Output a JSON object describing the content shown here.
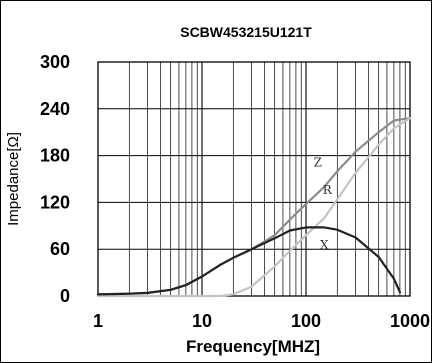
{
  "chart_data": {
    "type": "line",
    "title": "SCBW453215U121T",
    "xlabel": "Frequency[MHZ]",
    "ylabel": "Impedance[Ω]",
    "x_scale": "log",
    "xlim": [
      1,
      1000
    ],
    "ylim": [
      0,
      300
    ],
    "x_ticks": [
      "1",
      "10",
      "100",
      "1000"
    ],
    "y_ticks": [
      "0",
      "60",
      "120",
      "180",
      "240",
      "300"
    ],
    "grid": true,
    "legend": "none",
    "series": [
      {
        "name": "Z",
        "color": "#8c8c8c",
        "x": [
          1,
          2,
          3,
          5,
          7,
          10,
          15,
          20,
          30,
          50,
          70,
          100,
          150,
          200,
          300,
          500,
          700,
          1000
        ],
        "y": [
          2,
          3,
          4,
          8,
          14,
          25,
          40,
          49,
          60,
          78,
          98,
          118,
          140,
          160,
          185,
          210,
          225,
          228
        ]
      },
      {
        "name": "R",
        "color": "#c4c4c4",
        "x": [
          1,
          5,
          10,
          15,
          20,
          30,
          50,
          70,
          100,
          150,
          200,
          300,
          500,
          700,
          1000
        ],
        "y": [
          0,
          0,
          0,
          0,
          2,
          12,
          38,
          58,
          78,
          100,
          124,
          158,
          194,
          215,
          228
        ]
      },
      {
        "name": "X",
        "color": "#222222",
        "x": [
          1,
          2,
          3,
          5,
          7,
          10,
          15,
          20,
          30,
          50,
          70,
          100,
          150,
          200,
          300,
          500,
          700,
          800
        ],
        "y": [
          2,
          3,
          4,
          8,
          14,
          25,
          40,
          49,
          60,
          74,
          84,
          88,
          88,
          85,
          75,
          50,
          22,
          5
        ]
      }
    ]
  }
}
